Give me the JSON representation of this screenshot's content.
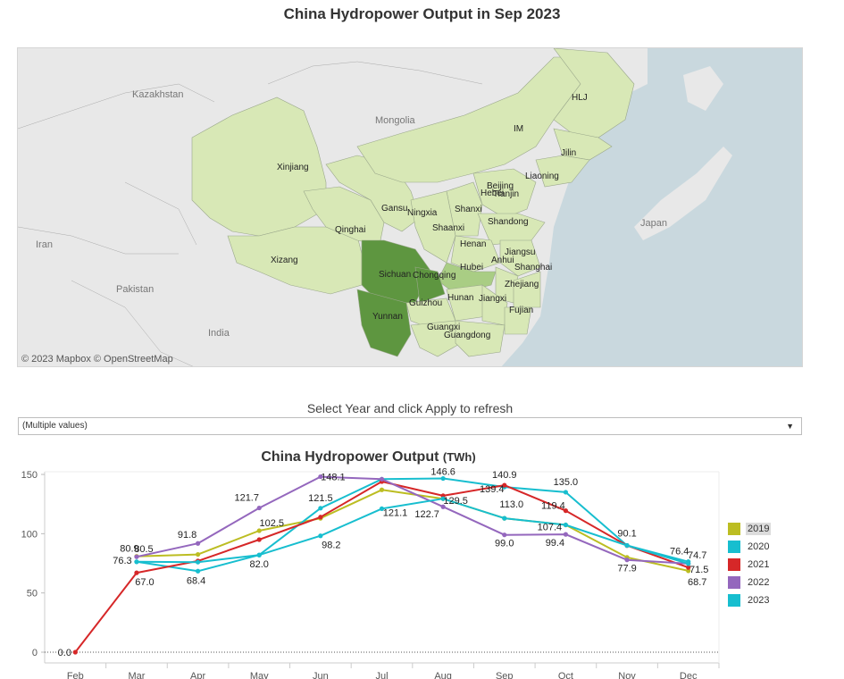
{
  "page": {
    "title": "China Hydropower Output in Sep 2023"
  },
  "map": {
    "attribution": "© 2023 Mapbox © OpenStreetMap",
    "countries": [
      "Kazakhstan",
      "Mongolia",
      "Iran",
      "Pakistan",
      "India",
      "Japan"
    ],
    "provinces": [
      "HLJ",
      "IM",
      "Jilin",
      "Liaoning",
      "Xinjiang",
      "Beijing",
      "Hebei",
      "Tianjin",
      "Gansu",
      "Ningxia",
      "Shanxi",
      "Shandong",
      "Qinghai",
      "Shaanxi",
      "Henan",
      "Jiangsu",
      "Xizang",
      "Hubei",
      "Anhui",
      "Shanghai",
      "Sichuan",
      "Chongqing",
      "Zhejiang",
      "Hunan",
      "Jiangxi",
      "Guizhou",
      "Fujian",
      "Yunnan",
      "Guangxi",
      "Guangdong"
    ],
    "colors": {
      "light": "#d8e8b6",
      "medium": "#a9cd84",
      "dark": "#5e9640",
      "sea": "#c9d8de",
      "land": "#e8e8e8"
    }
  },
  "filter": {
    "label": "Select Year and click Apply to refresh",
    "value": "(Multiple values)"
  },
  "chart_data": {
    "type": "line",
    "title": "China Hydropower Output",
    "unit": "(TWh)",
    "categories": [
      "Feb",
      "Mar",
      "Apr",
      "May",
      "Jun",
      "Jul",
      "Aug",
      "Sep",
      "Oct",
      "Nov",
      "Dec"
    ],
    "ylim": [
      0,
      150
    ],
    "yticks": [
      "0",
      "50",
      "100",
      "150"
    ],
    "grid": false,
    "legend_position": "right",
    "series": [
      {
        "name": "2019",
        "color": "#bcbd22",
        "values": [
          null,
          80.9,
          82.5,
          102.5,
          113.0,
          137.0,
          129.5,
          113.0,
          107.4,
          80.0,
          68.7
        ]
      },
      {
        "name": "2020",
        "color": "#17becf",
        "values": [
          null,
          76.3,
          68.4,
          82.0,
          121.5,
          146.0,
          146.6,
          139.4,
          135.0,
          90.1,
          76.4
        ]
      },
      {
        "name": "2021",
        "color": "#d62728",
        "values": [
          0.0,
          67.0,
          77.0,
          95.0,
          114.0,
          144.0,
          132.0,
          140.9,
          119.4,
          90.0,
          71.5
        ]
      },
      {
        "name": "2022",
        "color": "#9467bd",
        "values": [
          null,
          80.5,
          91.8,
          121.7,
          148.1,
          146.0,
          122.7,
          99.0,
          99.4,
          77.9,
          74.7
        ]
      },
      {
        "name": "2023",
        "color": "#17becf",
        "values": [
          null,
          76.3,
          76.0,
          82.0,
          98.2,
          121.1,
          129.5,
          113.0,
          107.4,
          90.1,
          74.7
        ]
      }
    ],
    "data_labels": [
      "0.0",
      "80.9",
      "80.5",
      "76.3",
      "67.0",
      "91.8",
      "68.4",
      "121.7",
      "102.5",
      "82.0",
      "121.5",
      "148.1",
      "98.2",
      "121.1",
      "146.6",
      "129.5",
      "122.7",
      "140.9",
      "139.4",
      "113.0",
      "99.0",
      "135.0",
      "119.4",
      "107.4",
      "99.4",
      "90.1",
      "77.9",
      "76.4",
      "74.7",
      "71.5",
      "68.7"
    ]
  },
  "legend": {
    "items": [
      "2019",
      "2020",
      "2021",
      "2022",
      "2023"
    ],
    "highlighted": "2019"
  }
}
